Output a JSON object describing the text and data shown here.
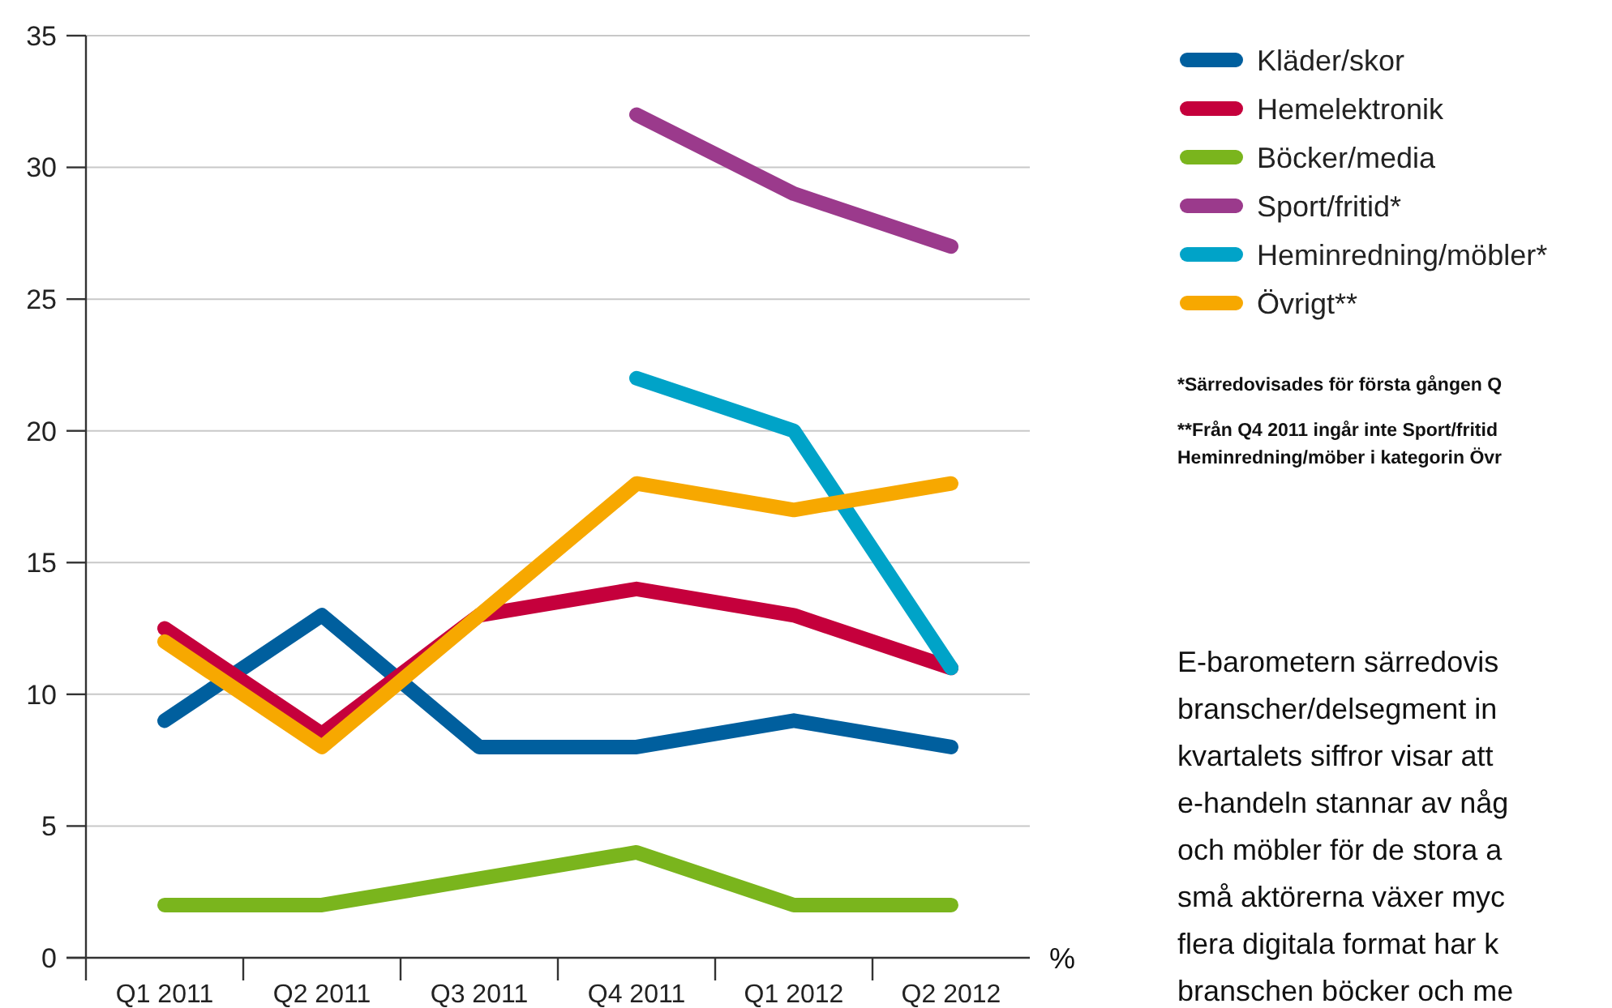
{
  "chart_data": {
    "type": "line",
    "categories": [
      "Q1 2011",
      "Q2 2011",
      "Q3 2011",
      "Q4 2011",
      "Q1 2012",
      "Q2 2012"
    ],
    "series": [
      {
        "name": "Kläder/skor",
        "color": "#005f9e",
        "values": [
          9,
          13,
          8,
          8,
          9,
          8
        ]
      },
      {
        "name": "Hemelektronik",
        "color": "#c5003c",
        "values": [
          12.5,
          8.5,
          13,
          14,
          13,
          11
        ]
      },
      {
        "name": "Böcker/media",
        "color": "#7ab51d",
        "values": [
          2,
          2,
          3,
          4,
          2,
          2
        ]
      },
      {
        "name": "Sport/fritid*",
        "color": "#9b3a8c",
        "values": [
          null,
          null,
          null,
          32,
          29,
          27
        ]
      },
      {
        "name": "Heminredning/möbler*",
        "color": "#00a3c8",
        "values": [
          null,
          null,
          null,
          22,
          20,
          11
        ]
      },
      {
        "name": "Övrigt**",
        "color": "#f7a800",
        "values": [
          12,
          8,
          13,
          18,
          17,
          18
        ]
      }
    ],
    "ylabel": "%",
    "ylim": [
      0,
      35
    ],
    "yticks": [
      0,
      5,
      10,
      15,
      20,
      25,
      30,
      35
    ],
    "grid": "y",
    "legend": "right",
    "marker": "none",
    "line_style": "solid",
    "annotations": [
      "*Särredovisades för första gången Q",
      "**Från Q4 2011 ingår inte Sport/fritid\nHeminredning/möber i kategorin Övr",
      "E-barometern särredovis\nbranscher/delsegment in\nkvartalets siffror visar att\ne-handeln stannar av någ\noch möbler för de stora a\nsmå aktörerna växer myc\nflera digitala format har k\nbranschen böcker och me"
    ]
  }
}
